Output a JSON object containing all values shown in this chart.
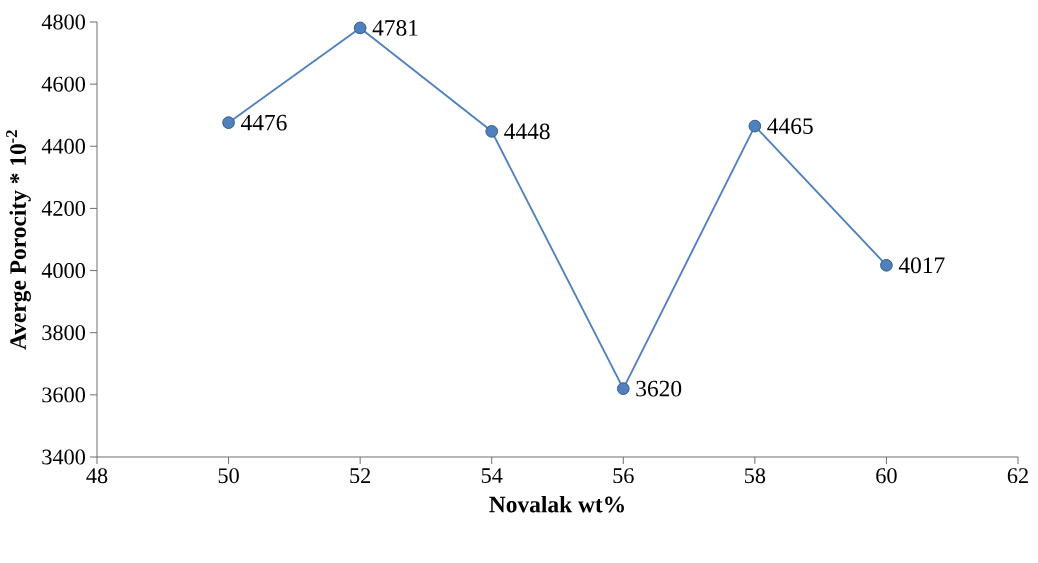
{
  "chart_data": {
    "type": "line",
    "xlabel": "Novalak wt%",
    "ylabel": "Averge Porocity * 10$^{-2}$",
    "x": [
      50,
      52,
      54,
      56,
      58,
      60
    ],
    "series": [
      {
        "color": "#4f81bd",
        "values": [
          4476,
          4781,
          4448,
          3620,
          4465,
          4017
        ]
      }
    ],
    "xlim": [
      48,
      62
    ],
    "xticks": [
      48,
      50,
      52,
      54,
      56,
      58,
      60,
      62
    ],
    "ylim": [
      3400,
      4800
    ],
    "yticks": [
      3400,
      3600,
      3800,
      4000,
      4200,
      4400,
      4600,
      4800
    ],
    "marker": "circle",
    "line_style": "solid",
    "data_labels": true
  }
}
